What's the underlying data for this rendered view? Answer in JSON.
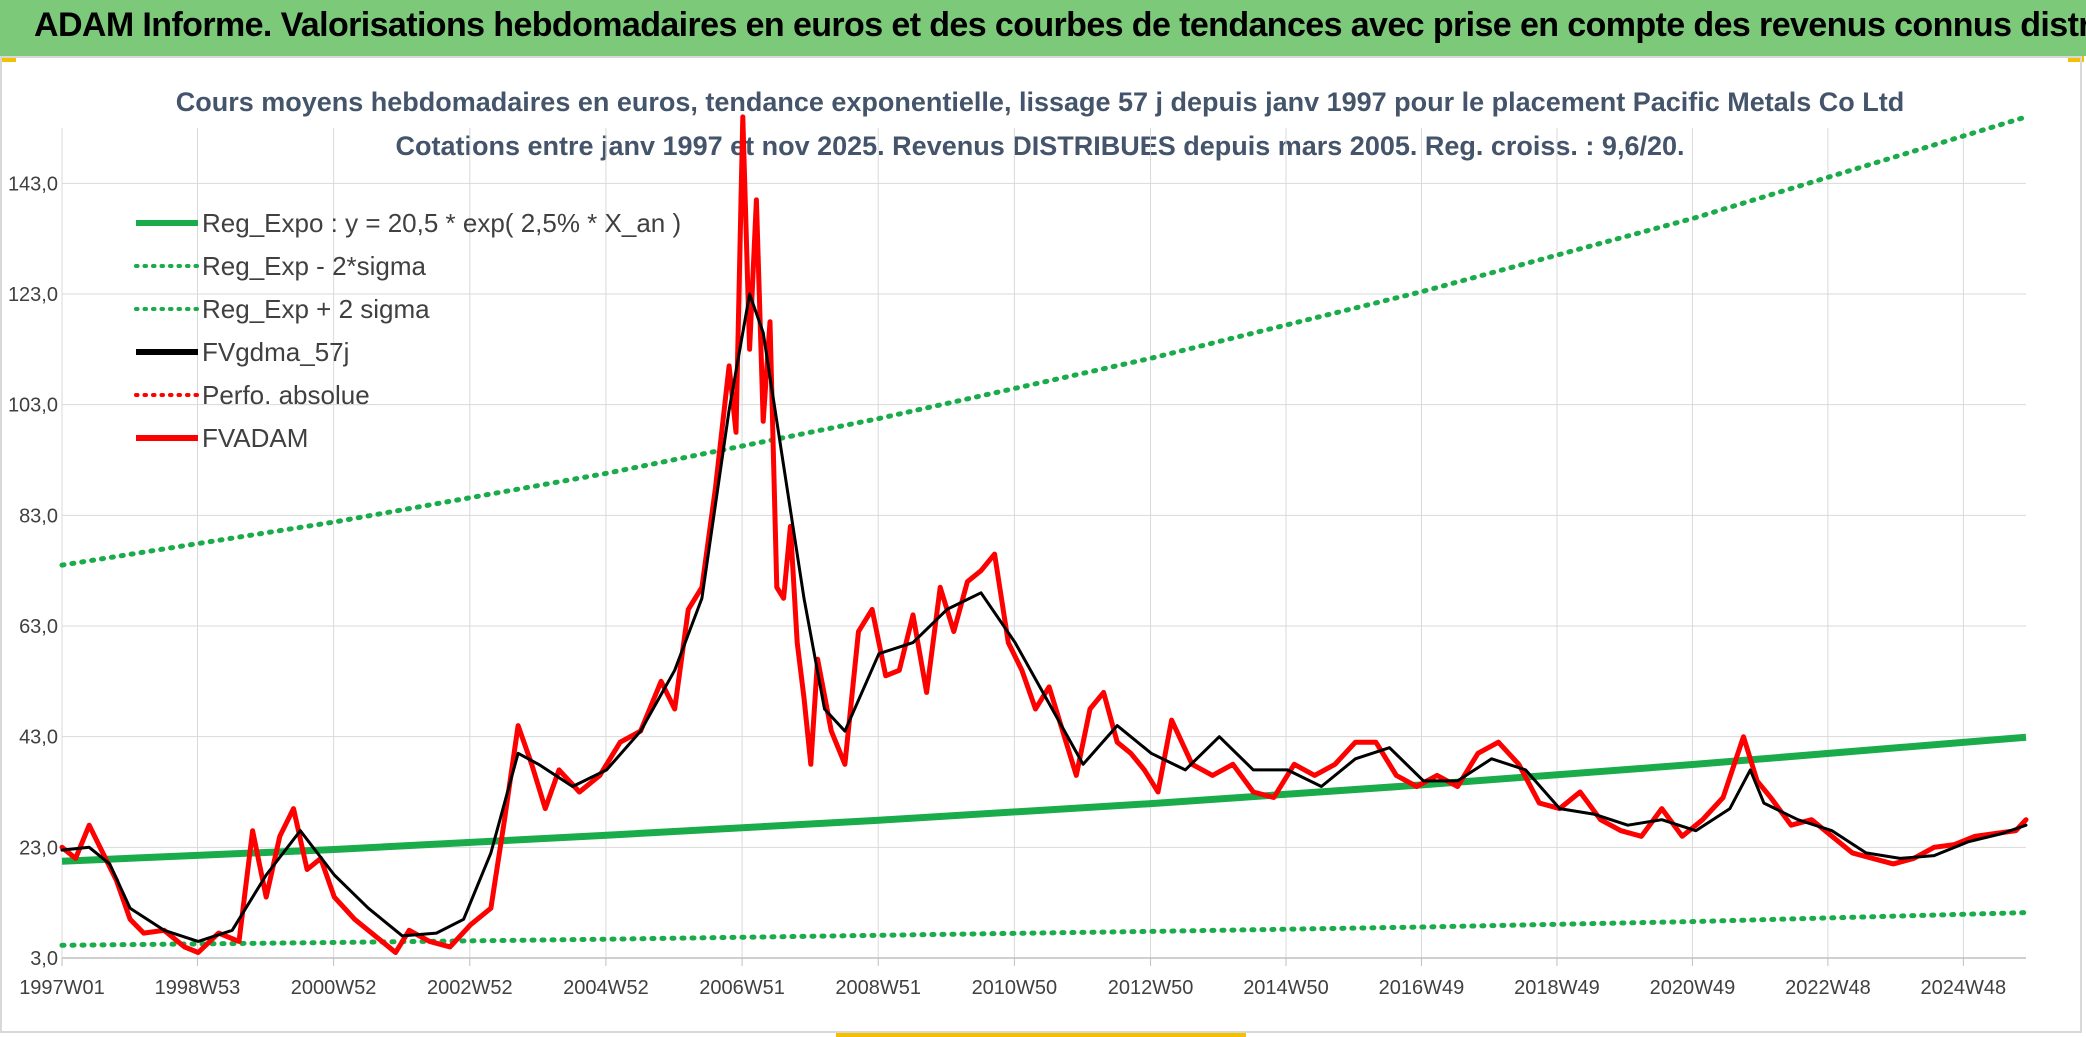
{
  "header": {
    "title": "ADAM Informe. Valorisations hebdomadaires en euros et des courbes de tendances avec prise en compte des revenus connus distribués"
  },
  "colors": {
    "banner": "#7dc97a",
    "trend": "#1aab4b",
    "smooth": "#000000",
    "price": "#ff0000",
    "perf": "#ff0000",
    "corner": "#f5c000"
  },
  "chart_data": {
    "type": "line",
    "title": "Cours moyens hebdomadaires en euros, tendance exponentielle, lissage 57 j depuis janv 1997 pour le placement Pacific Metals Co Ltd",
    "subtitle": "Cotations entre janv 1997 et nov 2025. Revenus DISTRIBUES depuis mars 2005. Reg. croiss. : 9,6/20.",
    "xlabel": "",
    "ylabel": "",
    "xlim": [
      1997.0,
      2025.85
    ],
    "ylim": [
      3.0,
      153.0
    ],
    "y_ticks": [
      3.0,
      23.0,
      43.0,
      63.0,
      83.0,
      103.0,
      123.0,
      143.0
    ],
    "y_tick_labels": [
      "3,0",
      "23,0",
      "43,0",
      "63,0",
      "83,0",
      "103,0",
      "123,0",
      "143,0"
    ],
    "x_ticks": [
      1997.0,
      1998.99,
      2000.99,
      2002.99,
      2004.99,
      2006.99,
      2008.99,
      2010.99,
      2012.99,
      2014.98,
      2016.97,
      2018.96,
      2020.95,
      2022.94,
      2024.93
    ],
    "x_tick_labels": [
      "1997W01",
      "1998W53",
      "2000W52",
      "2002W52",
      "2004W52",
      "2006W51",
      "2008W51",
      "2010W50",
      "2012W50",
      "2014W50",
      "2016W49",
      "2018W49",
      "2020W49",
      "2022W48",
      "2024W48"
    ],
    "grid": true,
    "legend_position": "top-left",
    "legend": [
      {
        "label": "Reg_Expo : y = 20,5 * exp( 2,5% *  X_an )",
        "style": "solid",
        "color": "#1aab4b"
      },
      {
        "label": "Reg_Exp - 2*sigma",
        "style": "dotted",
        "color": "#1aab4b"
      },
      {
        "label": "Reg_Exp + 2 sigma",
        "style": "dotted",
        "color": "#1aab4b"
      },
      {
        "label": "FVgdma_57j",
        "style": "solid",
        "color": "#000000"
      },
      {
        "label": "Perfo. absolue",
        "style": "dotted",
        "color": "#ff0000"
      },
      {
        "label": "FVADAM",
        "style": "solid",
        "color": "#ff0000"
      }
    ],
    "series": [
      {
        "name": "Reg_Expo",
        "x": [
          1997.0,
          2001.0,
          2005.0,
          2009.0,
          2013.0,
          2017.0,
          2021.0,
          2025.85
        ],
        "values": [
          20.5,
          22.6,
          25.2,
          27.9,
          30.9,
          34.3,
          38.0,
          42.9
        ]
      },
      {
        "name": "Reg_Exp - 2*sigma",
        "x": [
          1997.0,
          2001.0,
          2005.0,
          2009.0,
          2013.0,
          2017.0,
          2021.0,
          2025.85
        ],
        "values": [
          5.3,
          5.8,
          6.4,
          7.1,
          7.8,
          8.6,
          9.6,
          11.2
        ]
      },
      {
        "name": "Reg_Exp + 2 sigma",
        "x": [
          1997.0,
          2001.0,
          2005.0,
          2009.0,
          2013.0,
          2017.0,
          2021.0,
          2025.85
        ],
        "values": [
          74.0,
          81.8,
          90.6,
          100.5,
          111.4,
          123.5,
          136.8,
          155.0
        ]
      },
      {
        "name": "FVgdma_57j",
        "x": [
          1997.0,
          1997.4,
          1997.7,
          1998.0,
          1998.5,
          1999.0,
          1999.5,
          2000.0,
          2000.5,
          2001.0,
          2001.5,
          2002.0,
          2002.5,
          2002.9,
          2003.3,
          2003.7,
          2004.0,
          2004.5,
          2005.0,
          2005.5,
          2006.0,
          2006.4,
          2006.8,
          2007.1,
          2007.3,
          2007.6,
          2007.9,
          2008.2,
          2008.5,
          2009.0,
          2009.5,
          2010.0,
          2010.5,
          2011.0,
          2011.5,
          2012.0,
          2012.5,
          2013.0,
          2013.5,
          2014.0,
          2014.5,
          2015.0,
          2015.5,
          2016.0,
          2016.5,
          2017.0,
          2017.5,
          2018.0,
          2018.5,
          2019.0,
          2019.5,
          2020.0,
          2020.5,
          2021.0,
          2021.5,
          2021.8,
          2022.0,
          2022.5,
          2023.0,
          2023.5,
          2024.0,
          2024.5,
          2025.0,
          2025.5,
          2025.85
        ],
        "values": [
          22.5,
          23.0,
          20.0,
          12.0,
          8.0,
          6.0,
          8.0,
          18.0,
          26.0,
          18.0,
          12.0,
          7.0,
          7.5,
          10.0,
          22.0,
          40.0,
          38.0,
          34.0,
          37.0,
          44.0,
          55.0,
          68.0,
          102.0,
          123.0,
          116.0,
          92.0,
          68.0,
          48.0,
          44.0,
          58.0,
          60.0,
          66.0,
          69.0,
          60.0,
          49.0,
          38.0,
          45.0,
          40.0,
          37.0,
          43.0,
          37.0,
          37.0,
          34.0,
          39.0,
          41.0,
          35.0,
          35.0,
          39.0,
          37.0,
          30.0,
          29.0,
          27.0,
          28.0,
          26.0,
          30.0,
          37.0,
          31.0,
          28.0,
          26.0,
          22.0,
          21.0,
          21.5,
          24.0,
          25.5,
          27.0
        ]
      },
      {
        "name": "FVADAM",
        "x": [
          1997.0,
          1997.2,
          1997.4,
          1997.6,
          1997.8,
          1998.0,
          1998.2,
          1998.5,
          1998.8,
          1999.0,
          1999.3,
          1999.6,
          1999.8,
          2000.0,
          2000.2,
          2000.4,
          2000.6,
          2000.8,
          2001.0,
          2001.3,
          2001.6,
          2001.9,
          2002.1,
          2002.4,
          2002.7,
          2003.0,
          2003.3,
          2003.5,
          2003.7,
          2003.9,
          2004.1,
          2004.3,
          2004.6,
          2004.9,
          2005.2,
          2005.5,
          2005.8,
          2006.0,
          2006.2,
          2006.4,
          2006.6,
          2006.8,
          2006.9,
          2007.0,
          2007.1,
          2007.2,
          2007.3,
          2007.4,
          2007.5,
          2007.6,
          2007.7,
          2007.8,
          2007.9,
          2008.0,
          2008.1,
          2008.3,
          2008.5,
          2008.7,
          2008.9,
          2009.1,
          2009.3,
          2009.5,
          2009.7,
          2009.9,
          2010.1,
          2010.3,
          2010.5,
          2010.7,
          2010.9,
          2011.1,
          2011.3,
          2011.5,
          2011.7,
          2011.9,
          2012.1,
          2012.3,
          2012.5,
          2012.7,
          2012.9,
          2013.1,
          2013.3,
          2013.6,
          2013.9,
          2014.2,
          2014.5,
          2014.8,
          2015.1,
          2015.4,
          2015.7,
          2016.0,
          2016.3,
          2016.6,
          2016.9,
          2017.2,
          2017.5,
          2017.8,
          2018.1,
          2018.4,
          2018.7,
          2019.0,
          2019.3,
          2019.6,
          2019.9,
          2020.2,
          2020.5,
          2020.8,
          2021.1,
          2021.4,
          2021.7,
          2021.9,
          2022.1,
          2022.4,
          2022.7,
          2023.0,
          2023.3,
          2023.6,
          2023.9,
          2024.2,
          2024.5,
          2024.8,
          2025.1,
          2025.4,
          2025.7,
          2025.85
        ],
        "values": [
          23.0,
          21.0,
          27.0,
          22.0,
          17.0,
          10.0,
          7.5,
          8.0,
          5.0,
          4.0,
          7.5,
          6.0,
          26.0,
          14.0,
          25.0,
          30.0,
          19.0,
          21.0,
          14.0,
          10.0,
          7.0,
          4.0,
          8.0,
          6.0,
          5.0,
          9.0,
          12.0,
          28.0,
          45.0,
          38.0,
          30.0,
          37.0,
          33.0,
          36.0,
          42.0,
          44.0,
          53.0,
          48.0,
          66.0,
          70.0,
          88.0,
          110.0,
          98.0,
          155.0,
          113.0,
          140.0,
          100.0,
          118.0,
          70.0,
          68.0,
          81.0,
          60.0,
          50.0,
          38.0,
          57.0,
          44.0,
          38.0,
          62.0,
          66.0,
          54.0,
          55.0,
          65.0,
          51.0,
          70.0,
          62.0,
          71.0,
          73.0,
          76.0,
          60.0,
          55.0,
          48.0,
          52.0,
          44.0,
          36.0,
          48.0,
          51.0,
          42.0,
          40.0,
          37.0,
          33.0,
          46.0,
          38.0,
          36.0,
          38.0,
          33.0,
          32.0,
          38.0,
          36.0,
          38.0,
          42.0,
          42.0,
          36.0,
          34.0,
          36.0,
          34.0,
          40.0,
          42.0,
          38.0,
          31.0,
          30.0,
          33.0,
          28.0,
          26.0,
          25.0,
          30.0,
          25.0,
          28.0,
          32.0,
          43.0,
          35.0,
          32.0,
          27.0,
          28.0,
          25.0,
          22.0,
          21.0,
          20.0,
          21.0,
          23.0,
          23.5,
          25.0,
          25.5,
          26.0,
          28.0
        ]
      }
    ]
  }
}
